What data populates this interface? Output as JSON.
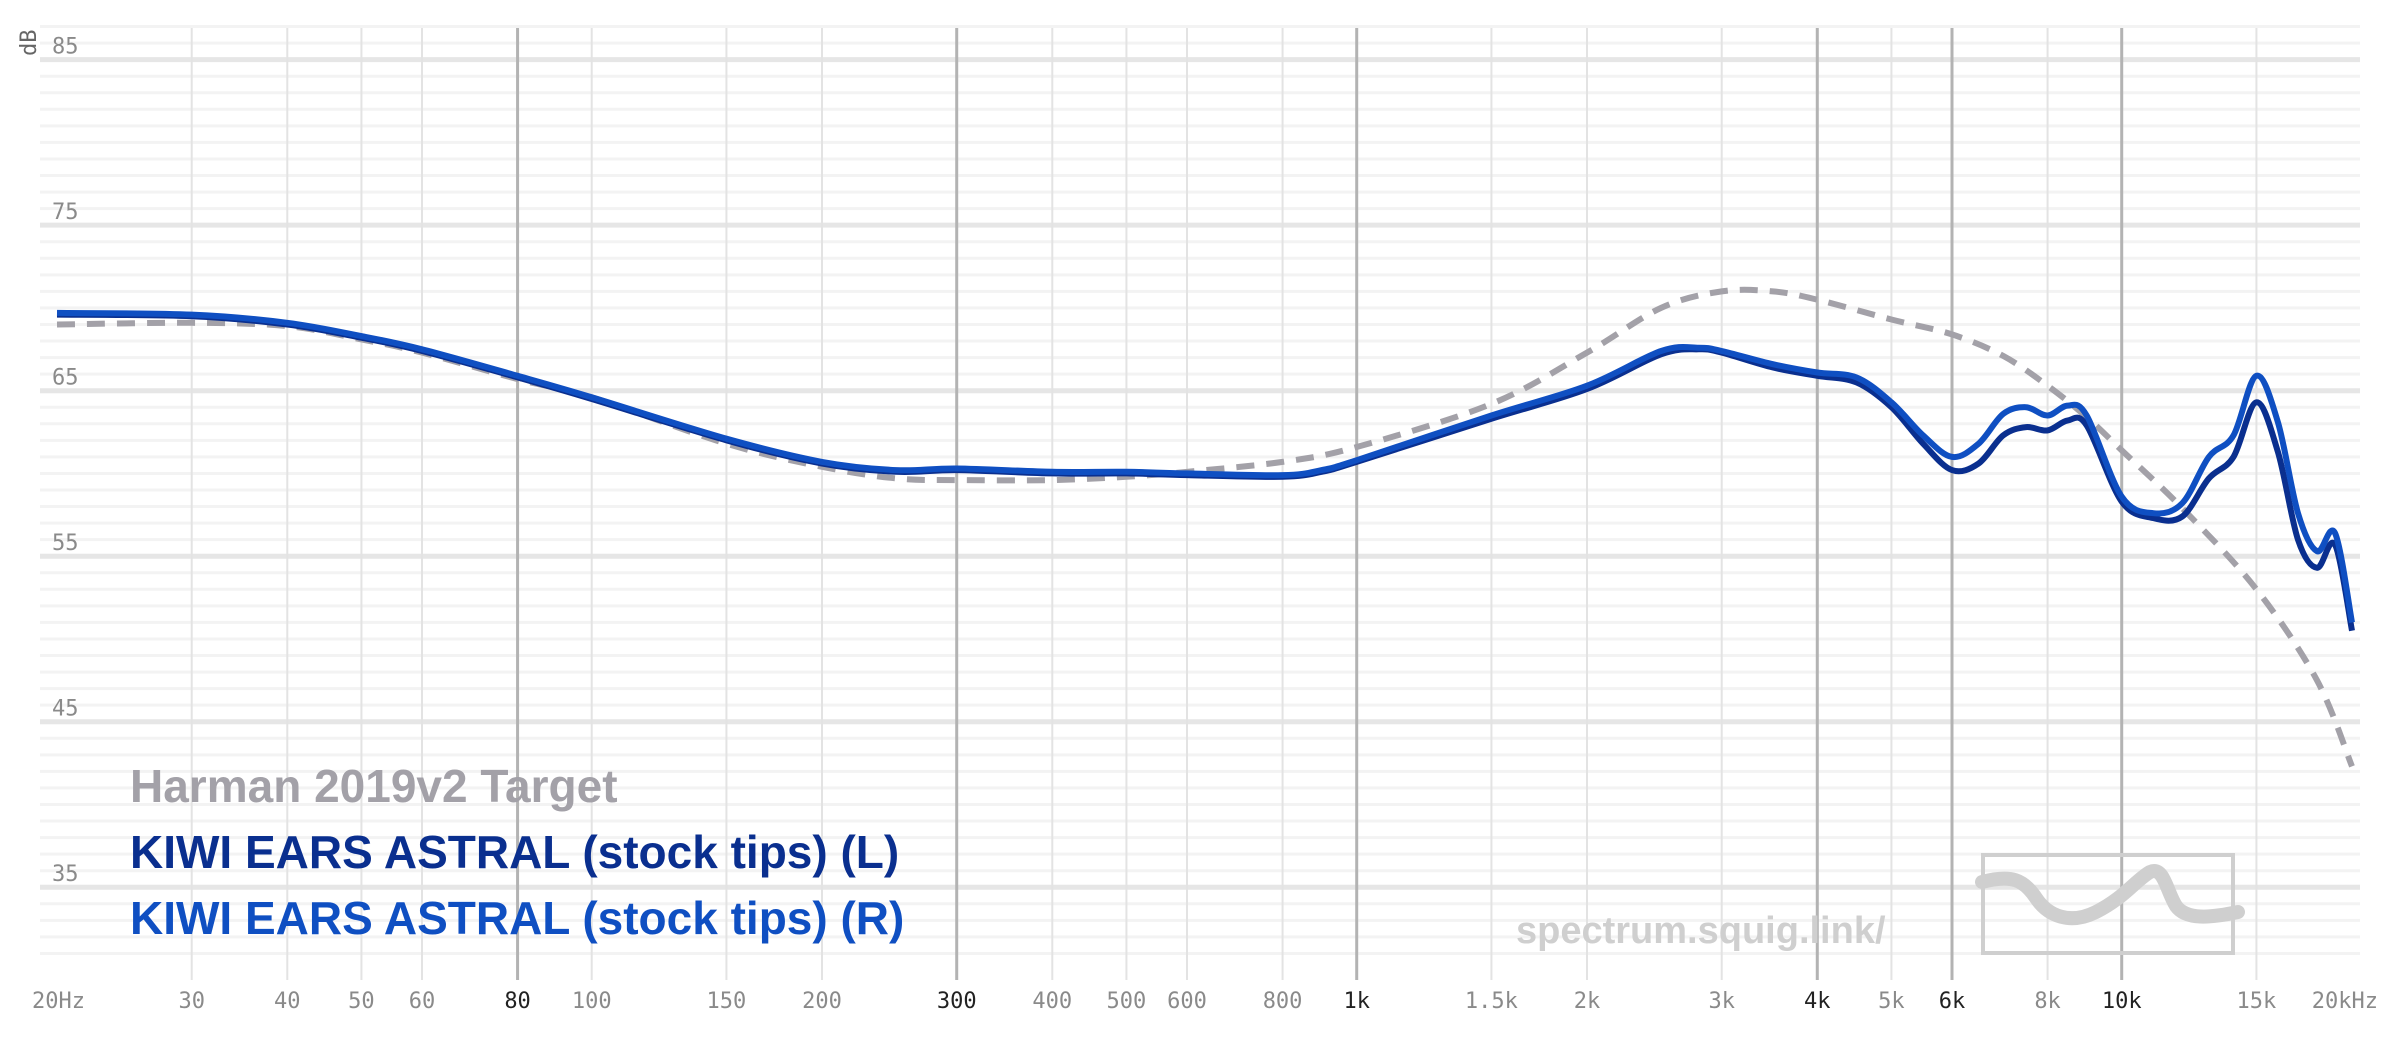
{
  "chart_data": {
    "type": "line",
    "title": "",
    "xlabel": "",
    "ylabel": "dB",
    "x_scale": "log",
    "xlim": [
      20,
      20000
    ],
    "ylim": [
      30,
      88
    ],
    "grid": true,
    "legend_position": "bottom-left",
    "x_ticks": [
      {
        "value": 20,
        "label": "20Hz",
        "major": false
      },
      {
        "value": 30,
        "label": "30",
        "major": false
      },
      {
        "value": 40,
        "label": "40",
        "major": false
      },
      {
        "value": 50,
        "label": "50",
        "major": false
      },
      {
        "value": 60,
        "label": "60",
        "major": false
      },
      {
        "value": 80,
        "label": "80",
        "major": true
      },
      {
        "value": 100,
        "label": "100",
        "major": false
      },
      {
        "value": 150,
        "label": "150",
        "major": false
      },
      {
        "value": 200,
        "label": "200",
        "major": false
      },
      {
        "value": 300,
        "label": "300",
        "major": true
      },
      {
        "value": 400,
        "label": "400",
        "major": false
      },
      {
        "value": 500,
        "label": "500",
        "major": false
      },
      {
        "value": 600,
        "label": "600",
        "major": false
      },
      {
        "value": 800,
        "label": "800",
        "major": false
      },
      {
        "value": 1000,
        "label": "1k",
        "major": true
      },
      {
        "value": 1500,
        "label": "1.5k",
        "major": false
      },
      {
        "value": 2000,
        "label": "2k",
        "major": false
      },
      {
        "value": 3000,
        "label": "3k",
        "major": false
      },
      {
        "value": 4000,
        "label": "4k",
        "major": true
      },
      {
        "value": 5000,
        "label": "5k",
        "major": false
      },
      {
        "value": 6000,
        "label": "6k",
        "major": true
      },
      {
        "value": 8000,
        "label": "8k",
        "major": false
      },
      {
        "value": 10000,
        "label": "10k",
        "major": true
      },
      {
        "value": 15000,
        "label": "15k",
        "major": false
      },
      {
        "value": 20000,
        "label": "20kHz",
        "major": false
      }
    ],
    "y_ticks": [
      {
        "value": 85,
        "label": "85"
      },
      {
        "value": 75,
        "label": "75"
      },
      {
        "value": 65,
        "label": "65"
      },
      {
        "value": 55,
        "label": "55"
      },
      {
        "value": 45,
        "label": "45"
      },
      {
        "value": 35,
        "label": "35"
      }
    ],
    "series": [
      {
        "name": "Harman 2019v2 Target",
        "color": "#a3a1a8",
        "dashed": true,
        "x": [
          20,
          30,
          40,
          50,
          60,
          80,
          100,
          150,
          200,
          250,
          300,
          400,
          500,
          600,
          800,
          1000,
          1500,
          2000,
          2500,
          3000,
          3500,
          4000,
          5000,
          6000,
          7000,
          8000,
          9000,
          10000,
          12000,
          15000,
          18000,
          20000
        ],
        "y": [
          69.0,
          69.1,
          68.9,
          68.1,
          67.3,
          65.7,
          64.6,
          61.8,
          60.4,
          59.7,
          59.6,
          59.6,
          59.8,
          60.1,
          60.7,
          61.6,
          64.2,
          67.3,
          70.0,
          71.0,
          71.0,
          70.5,
          69.3,
          68.4,
          67.1,
          65.3,
          63.4,
          61.4,
          57.9,
          53.0,
          47.5,
          42.3
        ]
      },
      {
        "name": "KIWI EARS ASTRAL (stock tips) (L)",
        "color": "#0a2f8f",
        "dashed": false,
        "x": [
          20,
          30,
          40,
          50,
          60,
          80,
          100,
          150,
          200,
          250,
          300,
          400,
          500,
          600,
          800,
          900,
          1000,
          1500,
          2000,
          2500,
          2800,
          3000,
          3500,
          4000,
          4500,
          5000,
          5500,
          6000,
          6500,
          7000,
          7500,
          8000,
          8500,
          9000,
          10000,
          11000,
          12000,
          13000,
          14000,
          15000,
          16000,
          17000,
          18000,
          19000,
          20000
        ],
        "y": [
          69.6,
          69.5,
          69.0,
          68.2,
          67.4,
          65.8,
          64.5,
          62.0,
          60.6,
          60.1,
          60.2,
          60.0,
          60.0,
          59.9,
          59.8,
          60.1,
          60.7,
          63.3,
          65.1,
          67.2,
          67.5,
          67.3,
          66.4,
          65.9,
          65.5,
          64.0,
          61.8,
          60.2,
          60.6,
          62.3,
          62.8,
          62.6,
          63.2,
          62.9,
          58.3,
          57.3,
          57.4,
          59.7,
          61.0,
          64.3,
          61.3,
          56.0,
          54.3,
          55.7,
          50.5
        ]
      },
      {
        "name": "KIWI EARS ASTRAL (stock tips) (R)",
        "color": "#0f4fc2",
        "dashed": false,
        "x": [
          20,
          30,
          40,
          50,
          60,
          80,
          100,
          150,
          200,
          250,
          300,
          400,
          500,
          600,
          800,
          900,
          1000,
          1500,
          2000,
          2500,
          2800,
          3000,
          3500,
          4000,
          4500,
          5000,
          5500,
          6000,
          6500,
          7000,
          7500,
          8000,
          8500,
          9000,
          10000,
          11000,
          12000,
          13000,
          14000,
          15000,
          16000,
          17000,
          18000,
          19000,
          20000
        ],
        "y": [
          69.7,
          69.6,
          69.1,
          68.3,
          67.5,
          65.9,
          64.6,
          62.1,
          60.7,
          60.2,
          60.3,
          60.1,
          60.1,
          60.0,
          59.9,
          60.2,
          60.8,
          63.5,
          65.3,
          67.4,
          67.6,
          67.4,
          66.6,
          66.1,
          65.8,
          64.3,
          62.3,
          61.0,
          61.8,
          63.6,
          64.0,
          63.5,
          64.1,
          63.5,
          58.6,
          57.6,
          58.2,
          61.0,
          62.3,
          65.9,
          63.1,
          57.6,
          55.3,
          56.4,
          51.0
        ]
      }
    ],
    "watermark": "spectrum.squig.link/"
  }
}
